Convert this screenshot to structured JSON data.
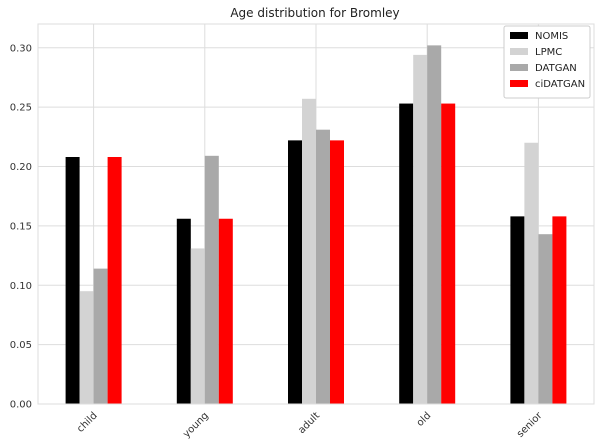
{
  "chart_data": {
    "type": "bar",
    "title": "Age distribution for Bromley",
    "xlabel": "",
    "ylabel": "",
    "ylim": [
      0,
      0.32
    ],
    "yticks": [
      0.0,
      0.05,
      0.1,
      0.15,
      0.2,
      0.25,
      0.3
    ],
    "ytick_labels": [
      "0.00",
      "0.05",
      "0.10",
      "0.15",
      "0.20",
      "0.25",
      "0.30"
    ],
    "grid": true,
    "legend_position": "top-right",
    "categories": [
      "child",
      "young",
      "adult",
      "old",
      "senior"
    ],
    "series": [
      {
        "name": "NOMIS",
        "color": "#000000",
        "values": [
          0.208,
          0.156,
          0.222,
          0.253,
          0.158
        ]
      },
      {
        "name": "LPMC",
        "color": "#d3d3d3",
        "values": [
          0.095,
          0.131,
          0.257,
          0.294,
          0.22
        ]
      },
      {
        "name": "DATGAN",
        "color": "#a9a9a9",
        "values": [
          0.114,
          0.209,
          0.231,
          0.302,
          0.143
        ]
      },
      {
        "name": "ciDATGAN",
        "color": "#ff0000",
        "values": [
          0.208,
          0.156,
          0.222,
          0.253,
          0.158
        ]
      }
    ]
  }
}
